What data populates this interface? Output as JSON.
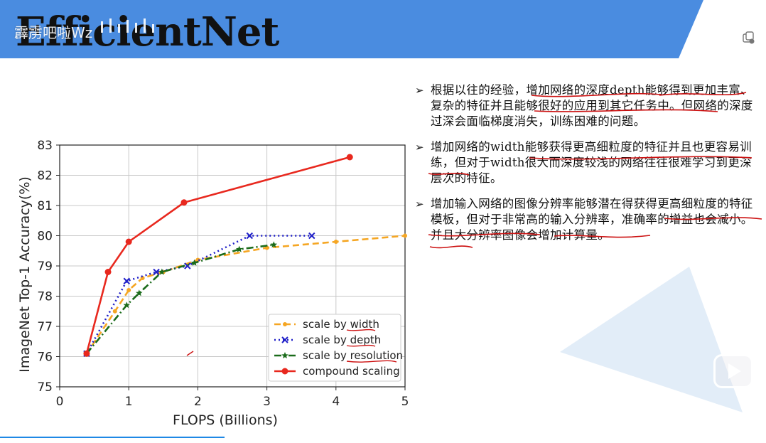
{
  "slide": {
    "title": "EfficientNet",
    "watermark": "霹雳吧啦Wz"
  },
  "bullets": [
    {
      "marker": "➢",
      "text": "根据以往的经验，增加网络的深度depth能够得到更加丰富、复杂的特征并且能够很好的应用到其它任务中。但网络的深度过深会面临梯度消失，训练困难的问题。"
    },
    {
      "marker": "➢",
      "text": "增加网络的width能够获得更高细粒度的特征并且也更容易训练，但对于width很大而深度较浅的网络往往很难学习到更深层次的特征。"
    },
    {
      "marker": "➢",
      "text": "增加输入网络的图像分辨率能够潜在得获得更高细粒度的特征模板，但对于非常高的输入分辨率，准确率的增益也会减小。并且大分辨率图像会增加计算量。"
    }
  ],
  "colors": {
    "banner_blue": "#4a8ce0",
    "width_series": "#f5a623",
    "depth_series": "#1f1fc8",
    "resolution_series": "#1a6b1a",
    "compound_series": "#e8281e",
    "annotation_red": "#cc1111"
  },
  "icons": [
    "copy-icon",
    "video-player-icon"
  ],
  "chart_data": {
    "type": "line",
    "xlabel": "FLOPS (Billions)",
    "ylabel": "ImageNet Top-1 Accuracy(%)",
    "xlim": [
      0,
      5
    ],
    "ylim": [
      75,
      83
    ],
    "xticks": [
      "0",
      "1",
      "2",
      "3",
      "4",
      "5"
    ],
    "yticks": [
      "75",
      "76",
      "77",
      "78",
      "79",
      "80",
      "81",
      "82",
      "83"
    ],
    "grid": true,
    "legend_position": "lower-right",
    "series": [
      {
        "name": "scale by width",
        "style": "dashed",
        "marker": "dot",
        "color": "#f5a623",
        "x": [
          0.39,
          0.8,
          1.0,
          1.2,
          1.5,
          2.0,
          3.0,
          4.0,
          5.0
        ],
        "y": [
          76.1,
          77.5,
          78.2,
          78.6,
          78.8,
          79.2,
          79.6,
          79.8,
          80.0
        ]
      },
      {
        "name": "scale by depth",
        "style": "dotted",
        "marker": "x",
        "color": "#1f1fc8",
        "x": [
          0.39,
          0.97,
          1.4,
          1.85,
          2.75,
          3.65
        ],
        "y": [
          76.1,
          78.5,
          78.8,
          79.0,
          80.0,
          80.0
        ]
      },
      {
        "name": "scale by resolution",
        "style": "dashdot",
        "marker": "star",
        "color": "#1a6b1a",
        "x": [
          0.39,
          0.97,
          1.15,
          1.48,
          1.95,
          2.6,
          3.1
        ],
        "y": [
          76.1,
          77.7,
          78.1,
          78.8,
          79.1,
          79.55,
          79.7
        ]
      },
      {
        "name": "compound scaling",
        "style": "solid",
        "marker": "dot",
        "color": "#e8281e",
        "x": [
          0.39,
          0.7,
          1.0,
          1.8,
          4.2
        ],
        "y": [
          76.1,
          78.8,
          79.8,
          81.1,
          82.6
        ]
      }
    ]
  }
}
